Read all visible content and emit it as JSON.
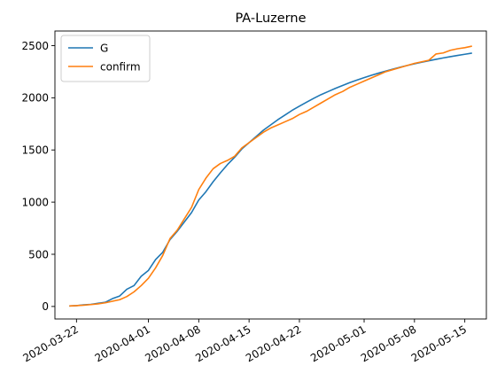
{
  "chart_data": {
    "type": "line",
    "title": "PA-Luzerne",
    "xlabel": "",
    "ylabel": "",
    "x_axis_type": "date",
    "xlim": [
      "2020-03-19",
      "2020-05-18"
    ],
    "ylim": [
      -120,
      2640
    ],
    "x_ticks": [
      "2020-03-22",
      "2020-04-01",
      "2020-04-08",
      "2020-04-15",
      "2020-04-22",
      "2020-05-01",
      "2020-05-08",
      "2020-05-15"
    ],
    "y_ticks": [
      0,
      500,
      1000,
      1500,
      2000,
      2500
    ],
    "grid": false,
    "legend_position": "top-left",
    "series": [
      {
        "name": "G",
        "color": "#1f77b4",
        "points": [
          [
            "2020-03-21",
            5
          ],
          [
            "2020-03-22",
            8
          ],
          [
            "2020-03-23",
            15
          ],
          [
            "2020-03-24",
            20
          ],
          [
            "2020-03-25",
            30
          ],
          [
            "2020-03-26",
            40
          ],
          [
            "2020-03-27",
            75
          ],
          [
            "2020-03-28",
            100
          ],
          [
            "2020-03-29",
            165
          ],
          [
            "2020-03-30",
            200
          ],
          [
            "2020-03-31",
            290
          ],
          [
            "2020-04-01",
            345
          ],
          [
            "2020-04-02",
            450
          ],
          [
            "2020-04-03",
            520
          ],
          [
            "2020-04-04",
            640
          ],
          [
            "2020-04-05",
            720
          ],
          [
            "2020-04-06",
            810
          ],
          [
            "2020-04-07",
            900
          ],
          [
            "2020-04-08",
            1020
          ],
          [
            "2020-04-09",
            1100
          ],
          [
            "2020-04-10",
            1195
          ],
          [
            "2020-04-11",
            1280
          ],
          [
            "2020-04-12",
            1360
          ],
          [
            "2020-04-13",
            1430
          ],
          [
            "2020-04-14",
            1510
          ],
          [
            "2020-04-15",
            1570
          ],
          [
            "2020-04-16",
            1630
          ],
          [
            "2020-04-17",
            1690
          ],
          [
            "2020-04-18",
            1740
          ],
          [
            "2020-04-19",
            1790
          ],
          [
            "2020-04-20",
            1835
          ],
          [
            "2020-04-21",
            1880
          ],
          [
            "2020-04-22",
            1920
          ],
          [
            "2020-04-23",
            1958
          ],
          [
            "2020-04-24",
            1995
          ],
          [
            "2020-04-25",
            2030
          ],
          [
            "2020-04-26",
            2060
          ],
          [
            "2020-04-27",
            2090
          ],
          [
            "2020-04-28",
            2118
          ],
          [
            "2020-04-29",
            2145
          ],
          [
            "2020-04-30",
            2170
          ],
          [
            "2020-05-01",
            2193
          ],
          [
            "2020-05-02",
            2215
          ],
          [
            "2020-05-03",
            2236
          ],
          [
            "2020-05-04",
            2256
          ],
          [
            "2020-05-05",
            2275
          ],
          [
            "2020-05-06",
            2293
          ],
          [
            "2020-05-07",
            2310
          ],
          [
            "2020-05-08",
            2326
          ],
          [
            "2020-05-09",
            2341
          ],
          [
            "2020-05-10",
            2355
          ],
          [
            "2020-05-11",
            2369
          ],
          [
            "2020-05-12",
            2382
          ],
          [
            "2020-05-13",
            2394
          ],
          [
            "2020-05-14",
            2406
          ],
          [
            "2020-05-15",
            2417
          ],
          [
            "2020-05-16",
            2428
          ]
        ]
      },
      {
        "name": "confirm",
        "color": "#ff7f0e",
        "points": [
          [
            "2020-03-21",
            5
          ],
          [
            "2020-03-22",
            8
          ],
          [
            "2020-03-23",
            12
          ],
          [
            "2020-03-24",
            18
          ],
          [
            "2020-03-25",
            25
          ],
          [
            "2020-03-26",
            35
          ],
          [
            "2020-03-27",
            50
          ],
          [
            "2020-03-28",
            65
          ],
          [
            "2020-03-29",
            95
          ],
          [
            "2020-03-30",
            140
          ],
          [
            "2020-03-31",
            200
          ],
          [
            "2020-04-01",
            270
          ],
          [
            "2020-04-02",
            370
          ],
          [
            "2020-04-03",
            490
          ],
          [
            "2020-04-04",
            650
          ],
          [
            "2020-04-05",
            730
          ],
          [
            "2020-04-06",
            840
          ],
          [
            "2020-04-07",
            950
          ],
          [
            "2020-04-08",
            1120
          ],
          [
            "2020-04-09",
            1230
          ],
          [
            "2020-04-10",
            1320
          ],
          [
            "2020-04-11",
            1370
          ],
          [
            "2020-04-12",
            1400
          ],
          [
            "2020-04-13",
            1440
          ],
          [
            "2020-04-14",
            1520
          ],
          [
            "2020-04-15",
            1570
          ],
          [
            "2020-04-16",
            1620
          ],
          [
            "2020-04-17",
            1670
          ],
          [
            "2020-04-18",
            1710
          ],
          [
            "2020-04-19",
            1740
          ],
          [
            "2020-04-20",
            1770
          ],
          [
            "2020-04-21",
            1800
          ],
          [
            "2020-04-22",
            1840
          ],
          [
            "2020-04-23",
            1870
          ],
          [
            "2020-04-24",
            1910
          ],
          [
            "2020-04-25",
            1950
          ],
          [
            "2020-04-26",
            1990
          ],
          [
            "2020-04-27",
            2030
          ],
          [
            "2020-04-28",
            2060
          ],
          [
            "2020-04-29",
            2100
          ],
          [
            "2020-04-30",
            2130
          ],
          [
            "2020-05-01",
            2160
          ],
          [
            "2020-05-02",
            2190
          ],
          [
            "2020-05-03",
            2220
          ],
          [
            "2020-05-04",
            2250
          ],
          [
            "2020-05-05",
            2270
          ],
          [
            "2020-05-06",
            2290
          ],
          [
            "2020-05-07",
            2310
          ],
          [
            "2020-05-08",
            2330
          ],
          [
            "2020-05-09",
            2345
          ],
          [
            "2020-05-10",
            2360
          ],
          [
            "2020-05-11",
            2420
          ],
          [
            "2020-05-12",
            2430
          ],
          [
            "2020-05-13",
            2455
          ],
          [
            "2020-05-14",
            2470
          ],
          [
            "2020-05-15",
            2480
          ],
          [
            "2020-05-16",
            2495
          ]
        ]
      }
    ]
  }
}
